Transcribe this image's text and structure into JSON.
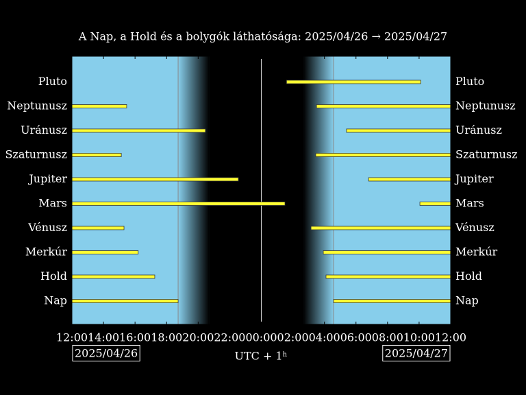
{
  "chart_data": {
    "type": "gantt",
    "title": "A Nap, a Hold és a bolygók láthatósága: 2025/04/26 → 2025/04/27",
    "xlabel": "UTC + 1ʰ",
    "date_labels": [
      "2025/04/26",
      "2025/04/27"
    ],
    "xlim": [
      0,
      24
    ],
    "xticks": [
      {
        "value": 0,
        "label": "12:00"
      },
      {
        "value": 2,
        "label": "14:00"
      },
      {
        "value": 4,
        "label": "16:00"
      },
      {
        "value": 6,
        "label": "18:00"
      },
      {
        "value": 8,
        "label": "20:00"
      },
      {
        "value": 10,
        "label": "22:00"
      },
      {
        "value": 12,
        "label": "00:00"
      },
      {
        "value": 14,
        "label": "02:00"
      },
      {
        "value": 16,
        "label": "04:00"
      },
      {
        "value": 18,
        "label": "06:00"
      },
      {
        "value": 20,
        "label": "08:00"
      },
      {
        "value": 22,
        "label": "10:00"
      },
      {
        "value": 24,
        "label": "12:00"
      }
    ],
    "dusk": [
      6.73,
      8.7
    ],
    "dawn": [
      14.67,
      16.58
    ],
    "color": "#ffff33",
    "series": [
      {
        "name": "Pluto",
        "values": [
          [
            13.6,
            22.1
          ]
        ]
      },
      {
        "name": "Neptunusz",
        "values": [
          [
            0,
            3.47
          ],
          [
            15.5,
            24
          ]
        ]
      },
      {
        "name": "Uránusz",
        "values": [
          [
            0,
            8.46
          ],
          [
            17.4,
            24
          ]
        ]
      },
      {
        "name": "Szaturnusz",
        "values": [
          [
            0,
            3.13
          ],
          [
            15.45,
            24
          ]
        ]
      },
      {
        "name": "Jupiter",
        "values": [
          [
            0,
            10.55
          ],
          [
            18.8,
            24
          ]
        ]
      },
      {
        "name": "Mars",
        "values": [
          [
            0,
            13.5
          ],
          [
            22.05,
            24
          ]
        ]
      },
      {
        "name": "Vénusz",
        "values": [
          [
            0,
            3.3
          ],
          [
            15.15,
            24
          ]
        ]
      },
      {
        "name": "Merkúr",
        "values": [
          [
            0,
            4.2
          ],
          [
            15.93,
            24
          ]
        ]
      },
      {
        "name": "Hold",
        "values": [
          [
            0,
            5.25
          ],
          [
            16.1,
            24
          ]
        ]
      },
      {
        "name": "Nap",
        "values": [
          [
            0,
            6.73
          ],
          [
            16.58,
            24
          ]
        ]
      }
    ]
  }
}
